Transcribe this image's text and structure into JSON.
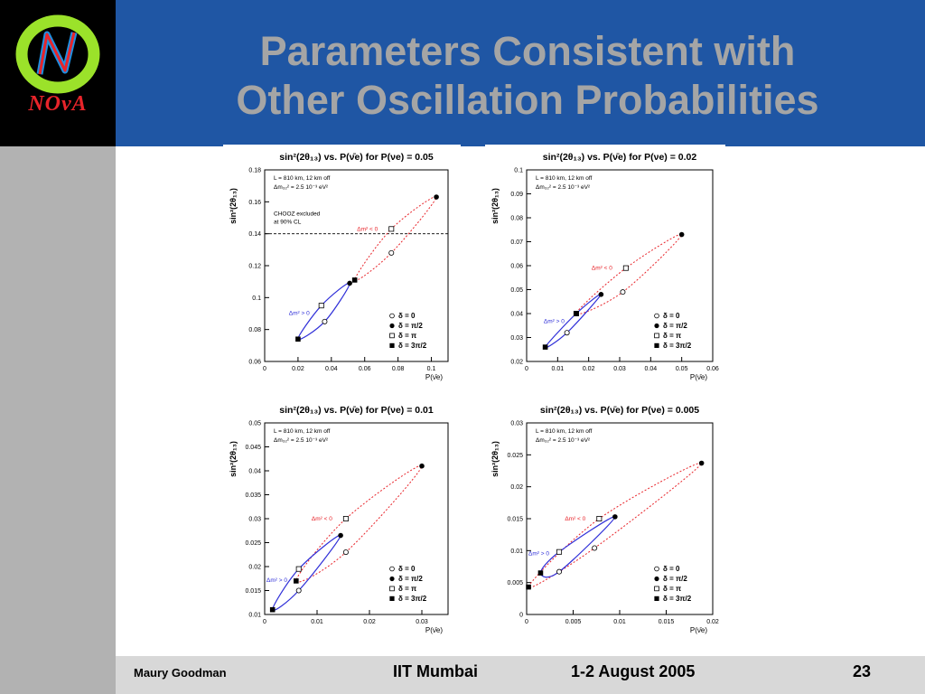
{
  "slide": {
    "title_line1": "Parameters Consistent with",
    "title_line2": "Other Oscillation Probabilities",
    "logo_text": "NOvA"
  },
  "footer": {
    "author": "Maury Goodman",
    "venue": "IIT Mumbai",
    "date": "1-2 August 2005",
    "page": "23"
  },
  "colors": {
    "banner": "#1f56a4",
    "title": "#a5a5a5",
    "sidebar": "#b2b2b2",
    "footer": "#d8d8d8",
    "normal_hierarchy": "#2f2fd8",
    "inverted_hierarchy": "#e8242a"
  },
  "chart_data": [
    {
      "type": "scatter",
      "title": "sin²(2θ₁₃) vs. P(ν̄e) for P(νe) = 0.05",
      "xlabel": "P(ν̄e)",
      "ylabel": "sin²(2θ₁₃)",
      "xlim": [
        0,
        0.11
      ],
      "ylim": [
        0.06,
        0.18
      ],
      "xticks": [
        "0",
        "0.02",
        "0.04",
        "0.06",
        "0.08",
        "0.1"
      ],
      "yticks": [
        "0.06",
        "0.08",
        "0.1",
        "0.12",
        "0.14",
        "0.16",
        "0.18"
      ],
      "info_line1": "L = 810 km, 12 km off",
      "info_line2": "Δm₃₂² = 2.5 10⁻³ eV²",
      "exclusion_line1": "CHOOZ excluded",
      "exclusion_line2": "at 90% CL",
      "exclusion_y": 0.14,
      "normal_label": "Δm² > 0",
      "inverted_label": "Δm² < 0",
      "legend": [
        "δ = 0",
        "δ = π/2",
        "δ = π",
        "δ = 3π/2"
      ],
      "normal": {
        "d0": [
          0.036,
          0.085
        ],
        "dpi2": [
          0.051,
          0.109
        ],
        "dpi": [
          0.034,
          0.095
        ],
        "d3pi2": [
          0.02,
          0.074
        ]
      },
      "inverted": {
        "d0": [
          0.076,
          0.128
        ],
        "dpi2": [
          0.103,
          0.163
        ],
        "dpi": [
          0.076,
          0.143
        ],
        "d3pi2": [
          0.054,
          0.111
        ]
      }
    },
    {
      "type": "scatter",
      "title": "sin²(2θ₁₃) vs. P(ν̄e) for P(νe) = 0.02",
      "xlabel": "P(ν̄e)",
      "ylabel": "sin²(2θ₁₃)",
      "xlim": [
        0,
        0.06
      ],
      "ylim": [
        0.02,
        0.1
      ],
      "xticks": [
        "0",
        "0.01",
        "0.02",
        "0.03",
        "0.04",
        "0.05",
        "0.06"
      ],
      "yticks": [
        "0.02",
        "0.03",
        "0.04",
        "0.05",
        "0.06",
        "0.07",
        "0.08",
        "0.09",
        "0.1"
      ],
      "info_line1": "L = 810 km, 12 km off",
      "info_line2": "Δm₃₂² = 2.5 10⁻³ eV²",
      "normal_label": "Δm² > 0",
      "inverted_label": "Δm² < 0",
      "legend": [
        "δ = 0",
        "δ = π/2",
        "δ = π",
        "δ = 3π/2"
      ],
      "normal": {
        "d0": [
          0.013,
          0.032
        ],
        "dpi2": [
          0.024,
          0.048
        ],
        "dpi": [
          0.016,
          0.04
        ],
        "d3pi2": [
          0.006,
          0.026
        ]
      },
      "inverted": {
        "d0": [
          0.031,
          0.049
        ],
        "dpi2": [
          0.05,
          0.073
        ],
        "dpi": [
          0.032,
          0.059
        ],
        "d3pi2": [
          0.016,
          0.04
        ]
      }
    },
    {
      "type": "scatter",
      "title": "sin²(2θ₁₃) vs. P(ν̄e) for P(νe) = 0.01",
      "xlabel": "P(ν̄e)",
      "ylabel": "sin²(2θ₁₃)",
      "xlim": [
        0,
        0.035
      ],
      "ylim": [
        0.01,
        0.05
      ],
      "xticks": [
        "0",
        "0.01",
        "0.02",
        "0.03"
      ],
      "yticks": [
        "0.01",
        "0.015",
        "0.02",
        "0.025",
        "0.03",
        "0.035",
        "0.04",
        "0.045",
        "0.05"
      ],
      "info_line1": "L = 810 km, 12 km off",
      "info_line2": "Δm₃₂² = 2.5 10⁻³ eV²",
      "normal_label": "Δm² > 0",
      "inverted_label": "Δm² < 0",
      "legend": [
        "δ = 0",
        "δ = π/2",
        "δ = π",
        "δ = 3π/2"
      ],
      "normal": {
        "d0": [
          0.0065,
          0.015
        ],
        "dpi2": [
          0.0145,
          0.0265
        ],
        "dpi": [
          0.0065,
          0.0195
        ],
        "d3pi2": [
          0.0015,
          0.011
        ]
      },
      "inverted": {
        "d0": [
          0.0155,
          0.023
        ],
        "dpi2": [
          0.03,
          0.041
        ],
        "dpi": [
          0.0155,
          0.03
        ],
        "d3pi2": [
          0.006,
          0.017
        ]
      }
    },
    {
      "type": "scatter",
      "title": "sin²(2θ₁₃) vs. P(ν̄e) for P(νe) = 0.005",
      "xlabel": "P(ν̄e)",
      "ylabel": "sin²(2θ₁₃)",
      "xlim": [
        0,
        0.02
      ],
      "ylim": [
        0,
        0.03
      ],
      "xticks": [
        "0",
        "0.005",
        "0.01",
        "0.015",
        "0.02"
      ],
      "yticks": [
        "0",
        "0.005",
        "0.01",
        "0.015",
        "0.02",
        "0.025",
        "0.03"
      ],
      "info_line1": "L = 810 km, 12 km off",
      "info_line2": "Δm₃₂² = 2.5 10⁻³ eV²",
      "normal_label": "Δm² > 0",
      "inverted_label": "Δm² < 0",
      "legend": [
        "δ = 0",
        "δ = π/2",
        "δ = π",
        "δ = 3π/2"
      ],
      "normal": {
        "d0": [
          0.0035,
          0.0067
        ],
        "dpi2": [
          0.0095,
          0.0153
        ],
        "dpi": [
          0.0035,
          0.0098
        ],
        "d3pi2": [
          0.0015,
          0.0065
        ]
      },
      "inverted": {
        "d0": [
          0.0073,
          0.0104
        ],
        "dpi2": [
          0.0188,
          0.0237
        ],
        "dpi": [
          0.0078,
          0.015
        ],
        "d3pi2": [
          0.0002,
          0.0043
        ]
      }
    }
  ]
}
